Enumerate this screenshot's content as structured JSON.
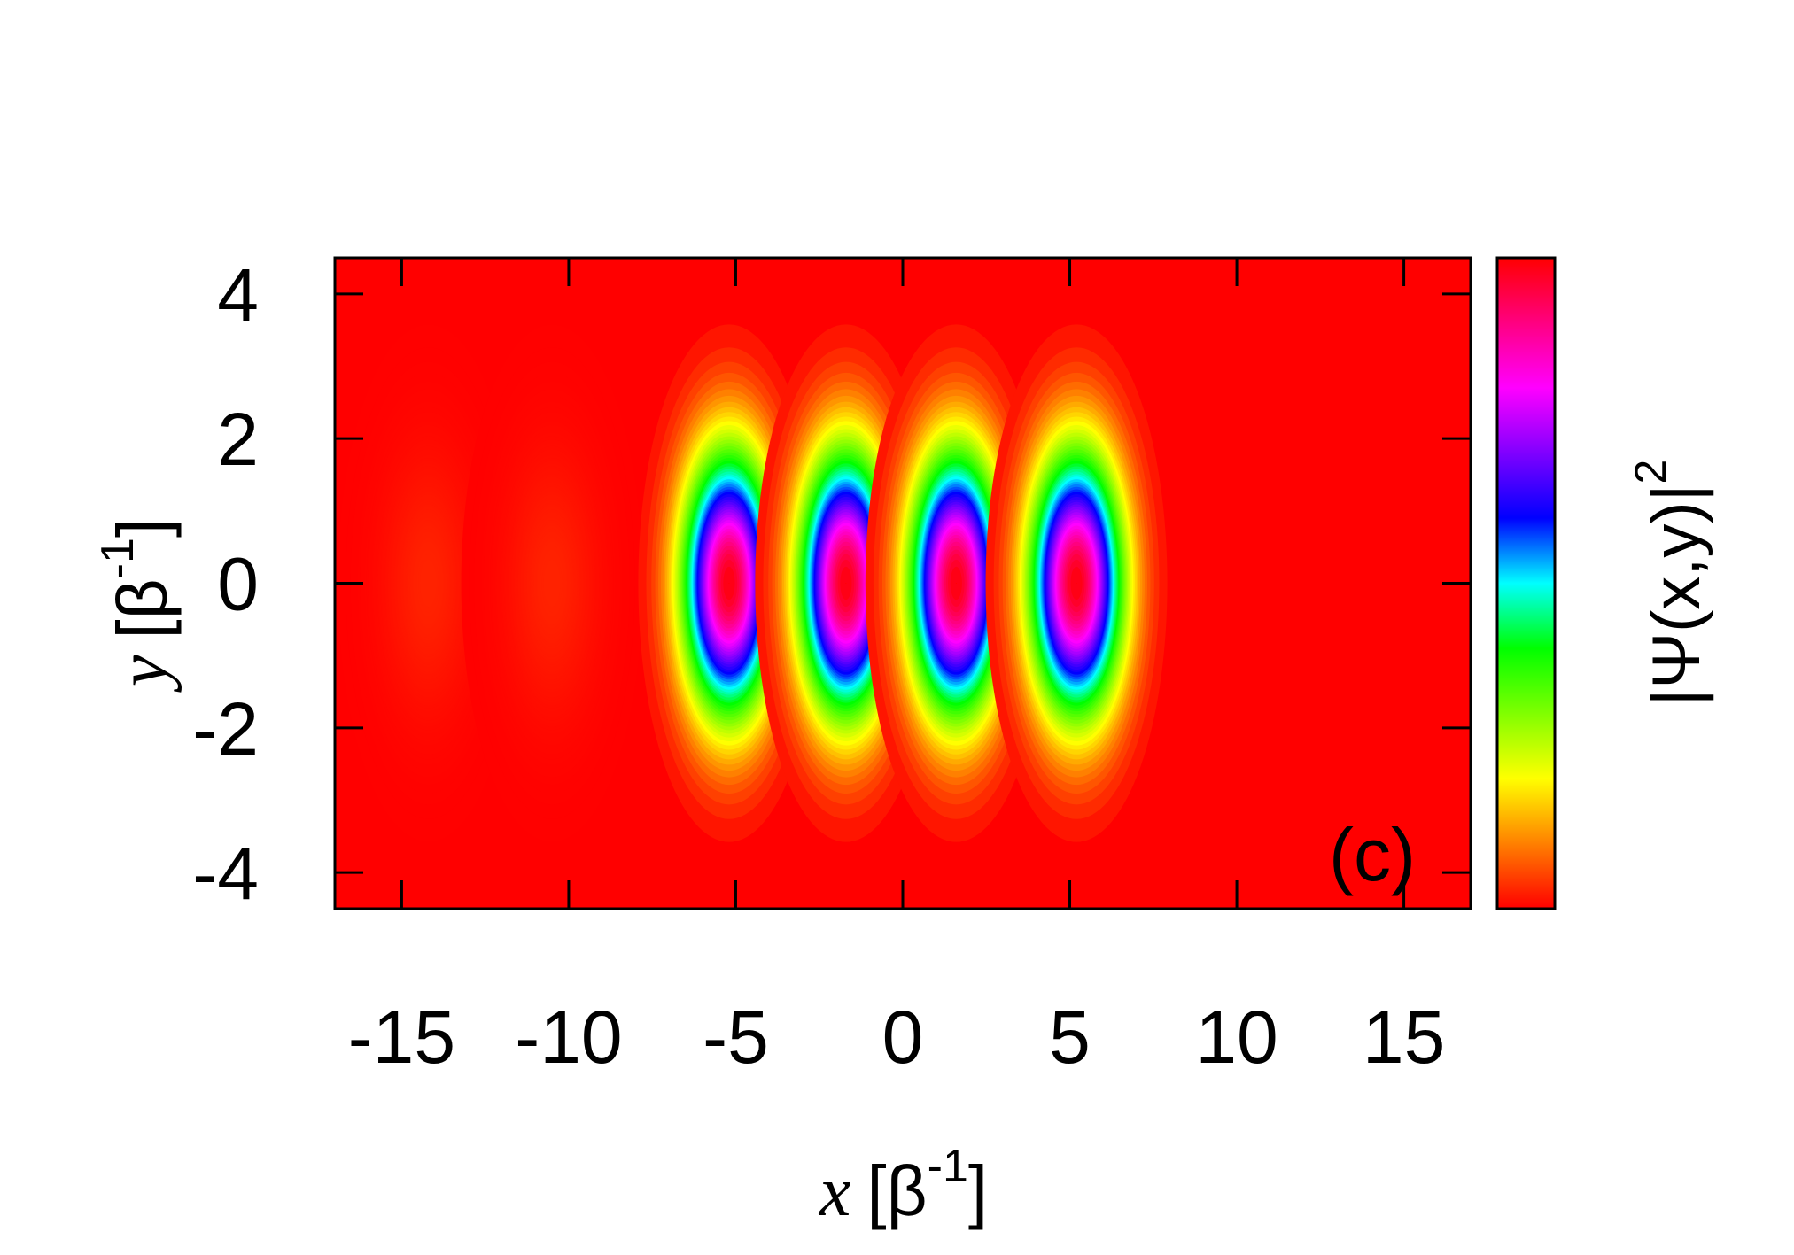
{
  "chart_data": {
    "type": "heatmap",
    "panel_label": "(c)",
    "xlabel": {
      "symbol": "x",
      "unit_open": "[β",
      "unit_exp": "-1",
      "unit_close": "]"
    },
    "ylabel": {
      "symbol": "y",
      "unit_open": "[β",
      "unit_exp": "-1",
      "unit_close": "]"
    },
    "colorbar_label": {
      "text": "|Ψ(x,y)|",
      "exp": "2"
    },
    "xlim": [
      -17,
      17
    ],
    "ylim": [
      -4.5,
      4.5
    ],
    "xticks": [
      -15,
      -10,
      -5,
      0,
      5,
      10,
      15
    ],
    "yticks": [
      -4,
      -2,
      0,
      2,
      4
    ],
    "x_tick_labels": [
      "-15",
      "-10",
      "-5",
      "0",
      "5",
      "10",
      "15"
    ],
    "y_tick_labels": [
      "-4",
      "-2",
      "0",
      "2",
      "4"
    ],
    "colormap": [
      "#ff0000",
      "#ff8000",
      "#ffff00",
      "#80ff00",
      "#00ff00",
      "#00ffff",
      "#0000ff",
      "#8000ff",
      "#ff00ff",
      "#ff0080",
      "#ff0000"
    ],
    "peaks": [
      {
        "x": -14.2,
        "y": 0,
        "amplitude": 0.02
      },
      {
        "x": -10.5,
        "y": 0,
        "amplitude": 0.03
      },
      {
        "x": -5.2,
        "y": 0,
        "amplitude": 1.0
      },
      {
        "x": -1.7,
        "y": 0,
        "amplitude": 1.0
      },
      {
        "x": 1.6,
        "y": 0,
        "amplitude": 1.0
      },
      {
        "x": 5.2,
        "y": 0,
        "amplitude": 1.0
      }
    ],
    "peak_sigma_x": 0.95,
    "peak_sigma_y": 1.25
  }
}
